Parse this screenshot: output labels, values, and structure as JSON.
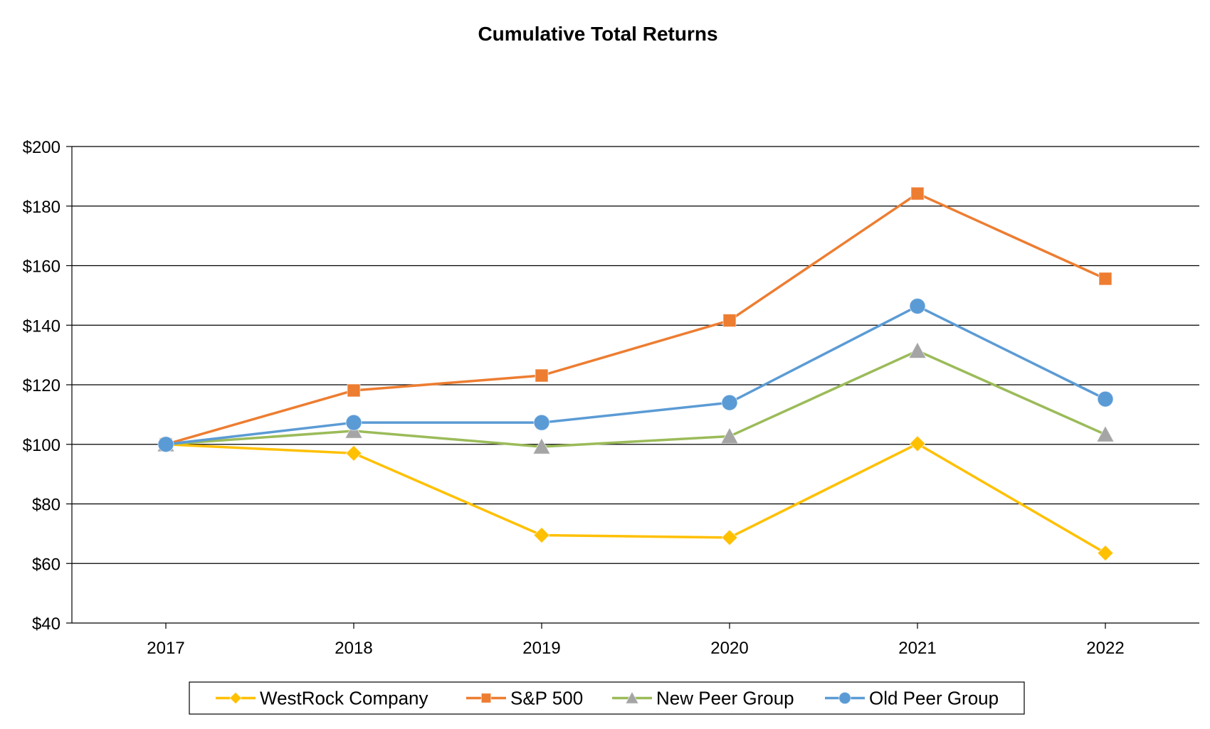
{
  "chart_data": {
    "type": "line",
    "title": "Cumulative Total Returns",
    "xlabel": "",
    "ylabel": "",
    "categories": [
      "2017",
      "2018",
      "2019",
      "2020",
      "2021",
      "2022"
    ],
    "y_ticks": [
      "$40",
      "$60",
      "$80",
      "$100",
      "$120",
      "$140",
      "$160",
      "$180",
      "$200"
    ],
    "ylim": [
      40,
      200
    ],
    "grid": true,
    "legend_position": "bottom",
    "series": [
      {
        "name": "WestRock Company",
        "color": "#FFC000",
        "marker": "diamond",
        "values": [
          100,
          97,
          69.5,
          68.7,
          100.2,
          63.5
        ]
      },
      {
        "name": "S&P 500",
        "color": "#ED7D31",
        "marker": "square",
        "values": [
          100,
          118.1,
          123.1,
          141.6,
          184.2,
          155.6
        ]
      },
      {
        "name": "New Peer Group",
        "color": "#9BBB59",
        "marker": "triangle",
        "values": [
          100,
          104.5,
          99.2,
          102.7,
          131.4,
          103.3
        ]
      },
      {
        "name": "Old Peer Group",
        "color": "#5B9BD5",
        "marker": "circle",
        "values": [
          100,
          107.3,
          107.3,
          114,
          146.4,
          115.2
        ]
      }
    ]
  }
}
